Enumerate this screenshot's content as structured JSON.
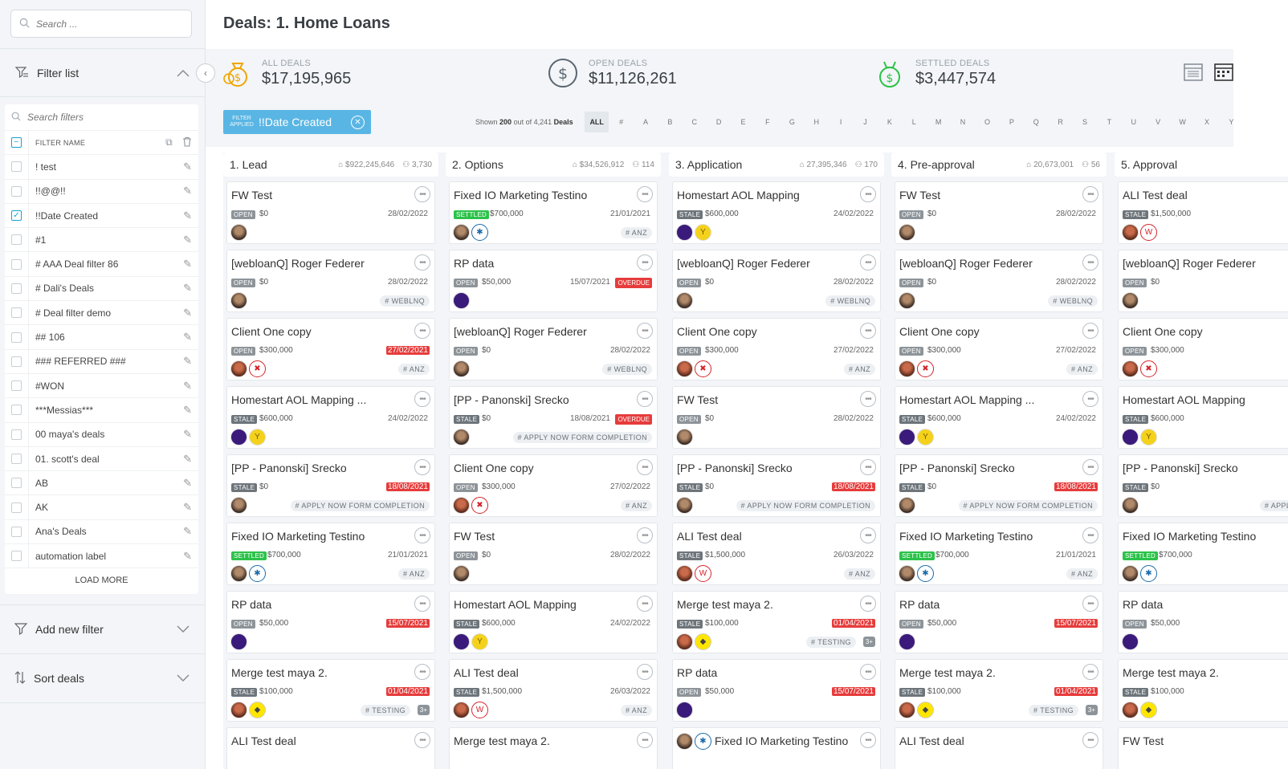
{
  "sidebar": {
    "search_placeholder": "Search ...",
    "filter_list_label": "Filter list",
    "filter_search_placeholder": "Search filters",
    "filter_header": "FILTER NAME",
    "filters": [
      {
        "name": "! test",
        "checked": false
      },
      {
        "name": "!!@@!!",
        "checked": false
      },
      {
        "name": "!!Date Created",
        "checked": true
      },
      {
        "name": "#1",
        "checked": false
      },
      {
        "name": "# AAA Deal filter 86",
        "checked": false
      },
      {
        "name": "# Dali's Deals",
        "checked": false
      },
      {
        "name": "# Deal filter demo",
        "checked": false
      },
      {
        "name": "## 106",
        "checked": false
      },
      {
        "name": "### REFERRED ###",
        "checked": false
      },
      {
        "name": "#WON",
        "checked": false
      },
      {
        "name": "***Messias***",
        "checked": false
      },
      {
        "name": "00 maya's deals",
        "checked": false
      },
      {
        "name": "01. scott's deal",
        "checked": false
      },
      {
        "name": "AB",
        "checked": false
      },
      {
        "name": "AK",
        "checked": false
      },
      {
        "name": "Ana's Deals",
        "checked": false
      },
      {
        "name": "automation label",
        "checked": false
      }
    ],
    "load_more": "LOAD MORE",
    "add_filter_label": "Add new filter",
    "sort_label": "Sort deals"
  },
  "header": {
    "title": "Deals: 1. Home Loans"
  },
  "stats": [
    {
      "label": "ALL DEALS",
      "value": "$17,195,965",
      "icon": "money-bag-icon",
      "color": "#f0a500"
    },
    {
      "label": "OPEN DEALS",
      "value": "$11,126,261",
      "icon": "dollar-circle-icon",
      "color": "#5a6570"
    },
    {
      "label": "SETTLED DEALS",
      "value": "$3,447,574",
      "icon": "money-bag-check-icon",
      "color": "#2cc24a"
    }
  ],
  "toolbar": {
    "filter_applied_small": "FILTER APPLIED",
    "filter_applied_name": "!!Date Created",
    "shown_prefix": "Shown",
    "shown_count": "200",
    "shown_mid": "out of 4,241",
    "shown_suffix": "Deals",
    "alphabet": [
      "ALL",
      "#",
      "A",
      "B",
      "C",
      "D",
      "E",
      "F",
      "G",
      "H",
      "I",
      "J",
      "K",
      "L",
      "M",
      "N",
      "O",
      "P",
      "Q",
      "R",
      "S",
      "T",
      "U",
      "V",
      "W",
      "X",
      "Y"
    ],
    "active_letter": "ALL"
  },
  "colors": {
    "open": "#8d9499",
    "stale": "#6d757b",
    "settled": "#2cc24a",
    "overdue": "#e63c3c",
    "accent": "#59b6e4"
  },
  "columns": [
    {
      "name": "1. Lead",
      "amount": "$922,245,646",
      "count": "3,730",
      "cards": [
        {
          "title": "FW Test",
          "status": "OPEN",
          "amount": "$0",
          "date": "28/02/2022",
          "date_red": false,
          "overdue": "",
          "avatars": [
            "p"
          ],
          "tag": "",
          "plus": ""
        },
        {
          "title": "[webloanQ] Roger Federer",
          "status": "OPEN",
          "amount": "$0",
          "date": "28/02/2022",
          "date_red": false,
          "overdue": "",
          "avatars": [
            "p"
          ],
          "tag": "WEBLNQ",
          "plus": ""
        },
        {
          "title": "Client One copy",
          "status": "OPEN",
          "amount": "$300,000",
          "date": "27/02/2021",
          "date_red": true,
          "overdue": "",
          "avatars": [
            "p2",
            "hs"
          ],
          "tag": "ANZ",
          "plus": ""
        },
        {
          "title": "Homestart  AOL Mapping ...",
          "status": "STALE",
          "amount": "$600,000",
          "date": "24/02/2022",
          "date_red": false,
          "overdue": "",
          "avatars": [
            "purple",
            "yellow"
          ],
          "tag": "",
          "plus": ""
        },
        {
          "title": "[PP - Panonski] Srecko",
          "status": "STALE",
          "amount": "$0",
          "date": "18/08/2021",
          "date_red": true,
          "overdue": "",
          "avatars": [
            "p"
          ],
          "tag": "APPLY NOW FORM COMPLETION",
          "plus": ""
        },
        {
          "title": "Fixed IO Marketing Testino",
          "status": "SETTLED",
          "amount": "$700,000",
          "date": "21/01/2021",
          "date_red": false,
          "overdue": "",
          "avatars": [
            "p",
            "anz"
          ],
          "tag": "ANZ",
          "plus": ""
        },
        {
          "title": "RP data",
          "status": "OPEN",
          "amount": "$50,000",
          "date": "15/07/2021",
          "date_red": true,
          "overdue": "",
          "avatars": [
            "purple"
          ],
          "tag": "",
          "plus": ""
        },
        {
          "title": "Merge test maya 2.",
          "status": "STALE",
          "amount": "$100,000",
          "date": "01/04/2021",
          "date_red": true,
          "overdue": "",
          "avatars": [
            "p2",
            "sb"
          ],
          "tag": "TESTING",
          "plus": "3+"
        },
        {
          "title": "ALI Test deal",
          "status": "",
          "amount": "",
          "date": "",
          "date_red": false,
          "overdue": "",
          "avatars": [],
          "tag": "",
          "plus": ""
        }
      ]
    },
    {
      "name": "2. Options",
      "amount": "$34,526,912",
      "count": "114",
      "cards": [
        {
          "title": "Fixed IO Marketing Testino",
          "status": "SETTLED",
          "amount": "$700,000",
          "date": "21/01/2021",
          "date_red": false,
          "overdue": "",
          "avatars": [
            "p",
            "anz"
          ],
          "tag": "ANZ",
          "plus": ""
        },
        {
          "title": "RP data",
          "status": "OPEN",
          "amount": "$50,000",
          "date": "15/07/2021",
          "date_red": false,
          "overdue": "OVERDUE",
          "avatars": [
            "purple"
          ],
          "tag": "",
          "plus": ""
        },
        {
          "title": "[webloanQ] Roger Federer",
          "status": "OPEN",
          "amount": "$0",
          "date": "28/02/2022",
          "date_red": false,
          "overdue": "",
          "avatars": [
            "p"
          ],
          "tag": "WEBLNQ",
          "plus": ""
        },
        {
          "title": "[PP - Panonski] Srecko",
          "status": "STALE",
          "amount": "$0",
          "date": "18/08/2021",
          "date_red": false,
          "overdue": "OVERDUE",
          "avatars": [
            "p"
          ],
          "tag": "APPLY NOW FORM COMPLETION",
          "plus": ""
        },
        {
          "title": "Client One copy",
          "status": "OPEN",
          "amount": "$300,000",
          "date": "27/02/2022",
          "date_red": false,
          "overdue": "",
          "avatars": [
            "p2",
            "hs"
          ],
          "tag": "ANZ",
          "plus": ""
        },
        {
          "title": "FW Test",
          "status": "OPEN",
          "amount": "$0",
          "date": "28/02/2022",
          "date_red": false,
          "overdue": "",
          "avatars": [
            "p"
          ],
          "tag": "",
          "plus": ""
        },
        {
          "title": "Homestart  AOL Mapping",
          "status": "STALE",
          "amount": "$600,000",
          "date": "24/02/2022",
          "date_red": false,
          "overdue": "",
          "avatars": [
            "purple",
            "yellow"
          ],
          "tag": "",
          "plus": ""
        },
        {
          "title": "ALI Test deal",
          "status": "STALE",
          "amount": "$1,500,000",
          "date": "26/03/2022",
          "date_red": false,
          "overdue": "",
          "avatars": [
            "p2",
            "wp"
          ],
          "tag": "ANZ",
          "plus": ""
        },
        {
          "title": "Merge test maya 2.",
          "status": "",
          "amount": "",
          "date": "",
          "date_red": false,
          "overdue": "",
          "avatars": [],
          "tag": "",
          "plus": ""
        }
      ]
    },
    {
      "name": "3. Application",
      "amount": "27,395,346",
      "count": "170",
      "cards": [
        {
          "title": "Homestart  AOL Mapping",
          "status": "STALE",
          "amount": "$600,000",
          "date": "24/02/2022",
          "date_red": false,
          "overdue": "",
          "avatars": [
            "purple",
            "yellow"
          ],
          "tag": "",
          "plus": ""
        },
        {
          "title": "[webloanQ] Roger Federer",
          "status": "OPEN",
          "amount": "$0",
          "date": "28/02/2022",
          "date_red": false,
          "overdue": "",
          "avatars": [
            "p"
          ],
          "tag": "WEBLNQ",
          "plus": ""
        },
        {
          "title": "Client One copy",
          "status": "OPEN",
          "amount": "$300,000",
          "date": "27/02/2022",
          "date_red": false,
          "overdue": "",
          "avatars": [
            "p2",
            "hs"
          ],
          "tag": "ANZ",
          "plus": ""
        },
        {
          "title": "FW Test",
          "status": "OPEN",
          "amount": "$0",
          "date": "28/02/2022",
          "date_red": false,
          "overdue": "",
          "avatars": [
            "p"
          ],
          "tag": "",
          "plus": ""
        },
        {
          "title": "[PP - Panonski] Srecko",
          "status": "STALE",
          "amount": "$0",
          "date": "18/08/2021",
          "date_red": true,
          "overdue": "",
          "avatars": [
            "p"
          ],
          "tag": "APPLY NOW FORM COMPLETION",
          "plus": ""
        },
        {
          "title": "ALI Test deal",
          "status": "STALE",
          "amount": "$1,500,000",
          "date": "26/03/2022",
          "date_red": false,
          "overdue": "",
          "avatars": [
            "p2",
            "wp"
          ],
          "tag": "ANZ",
          "plus": ""
        },
        {
          "title": "Merge test maya 2.",
          "status": "STALE",
          "amount": "$100,000",
          "date": "01/04/2021",
          "date_red": true,
          "overdue": "",
          "avatars": [
            "p2",
            "sb"
          ],
          "tag": "TESTING",
          "plus": "3+"
        },
        {
          "title": "RP data",
          "status": "OPEN",
          "amount": "$50,000",
          "date": "15/07/2021",
          "date_red": true,
          "overdue": "",
          "avatars": [
            "purple"
          ],
          "tag": "",
          "plus": ""
        },
        {
          "title": "Fixed IO Marketing Testino",
          "status": "",
          "amount": "",
          "date": "",
          "date_red": false,
          "overdue": "",
          "avatars": [
            "p",
            "anz"
          ],
          "tag": "",
          "plus": ""
        }
      ]
    },
    {
      "name": "4. Pre-approval",
      "amount": "20,673,001",
      "count": "56",
      "cards": [
        {
          "title": "FW Test",
          "status": "OPEN",
          "amount": "$0",
          "date": "28/02/2022",
          "date_red": false,
          "overdue": "",
          "avatars": [
            "p"
          ],
          "tag": "",
          "plus": ""
        },
        {
          "title": "[webloanQ] Roger Federer",
          "status": "OPEN",
          "amount": "$0",
          "date": "28/02/2022",
          "date_red": false,
          "overdue": "",
          "avatars": [
            "p"
          ],
          "tag": "WEBLNQ",
          "plus": ""
        },
        {
          "title": "Client One copy",
          "status": "OPEN",
          "amount": "$300,000",
          "date": "27/02/2022",
          "date_red": false,
          "overdue": "",
          "avatars": [
            "p2",
            "hs"
          ],
          "tag": "ANZ",
          "plus": ""
        },
        {
          "title": "Homestart  AOL Mapping ...",
          "status": "STALE",
          "amount": "$600,000",
          "date": "24/02/2022",
          "date_red": false,
          "overdue": "",
          "avatars": [
            "purple",
            "yellow"
          ],
          "tag": "",
          "plus": ""
        },
        {
          "title": "[PP - Panonski] Srecko",
          "status": "STALE",
          "amount": "$0",
          "date": "18/08/2021",
          "date_red": true,
          "overdue": "",
          "avatars": [
            "p"
          ],
          "tag": "APPLY NOW FORM COMPLETION",
          "plus": ""
        },
        {
          "title": "Fixed IO Marketing Testino",
          "status": "SETTLED",
          "amount": "$700,000",
          "date": "21/01/2021",
          "date_red": false,
          "overdue": "",
          "avatars": [
            "p",
            "anz"
          ],
          "tag": "ANZ",
          "plus": ""
        },
        {
          "title": "RP data",
          "status": "OPEN",
          "amount": "$50,000",
          "date": "15/07/2021",
          "date_red": true,
          "overdue": "",
          "avatars": [
            "purple"
          ],
          "tag": "",
          "plus": ""
        },
        {
          "title": "Merge test maya 2.",
          "status": "STALE",
          "amount": "$100,000",
          "date": "01/04/2021",
          "date_red": true,
          "overdue": "",
          "avatars": [
            "p2",
            "sb"
          ],
          "tag": "TESTING",
          "plus": "3+"
        },
        {
          "title": "ALI Test deal",
          "status": "",
          "amount": "",
          "date": "",
          "date_red": false,
          "overdue": "",
          "avatars": [],
          "tag": "",
          "plus": ""
        }
      ]
    },
    {
      "name": "5. Approval",
      "amount": "",
      "count": "",
      "cards": [
        {
          "title": "ALI Test deal",
          "status": "STALE",
          "amount": "$1,500,000",
          "date": "",
          "date_red": false,
          "overdue": "",
          "avatars": [
            "p2",
            "wp"
          ],
          "tag": "",
          "plus": ""
        },
        {
          "title": "[webloanQ] Roger Federer",
          "status": "OPEN",
          "amount": "$0",
          "date": "",
          "date_red": false,
          "overdue": "",
          "avatars": [
            "p"
          ],
          "tag": "",
          "plus": ""
        },
        {
          "title": "Client One copy",
          "status": "OPEN",
          "amount": "$300,000",
          "date": "",
          "date_red": false,
          "overdue": "",
          "avatars": [
            "p2",
            "hs"
          ],
          "tag": "",
          "plus": ""
        },
        {
          "title": "Homestart  AOL Mapping",
          "status": "STALE",
          "amount": "$600,000",
          "date": "",
          "date_red": false,
          "overdue": "",
          "avatars": [
            "purple",
            "yellow"
          ],
          "tag": "",
          "plus": ""
        },
        {
          "title": "[PP - Panonski] Srecko",
          "status": "STALE",
          "amount": "$0",
          "date": "",
          "date_red": false,
          "overdue": "",
          "avatars": [
            "p"
          ],
          "tag": "APPLY NOW",
          "plus": ""
        },
        {
          "title": "Fixed IO Marketing Testino",
          "status": "SETTLED",
          "amount": "$700,000",
          "date": "",
          "date_red": false,
          "overdue": "",
          "avatars": [
            "p",
            "anz"
          ],
          "tag": "",
          "plus": ""
        },
        {
          "title": "RP data",
          "status": "OPEN",
          "amount": "$50,000",
          "date": "",
          "date_red": false,
          "overdue": "",
          "avatars": [
            "purple"
          ],
          "tag": "",
          "plus": ""
        },
        {
          "title": "Merge test maya 2.",
          "status": "STALE",
          "amount": "$100,000",
          "date": "",
          "date_red": false,
          "overdue": "",
          "avatars": [
            "p2",
            "sb"
          ],
          "tag": "",
          "plus": ""
        },
        {
          "title": "FW Test",
          "status": "",
          "amount": "",
          "date": "",
          "date_red": false,
          "overdue": "",
          "avatars": [],
          "tag": "",
          "plus": ""
        }
      ]
    }
  ]
}
